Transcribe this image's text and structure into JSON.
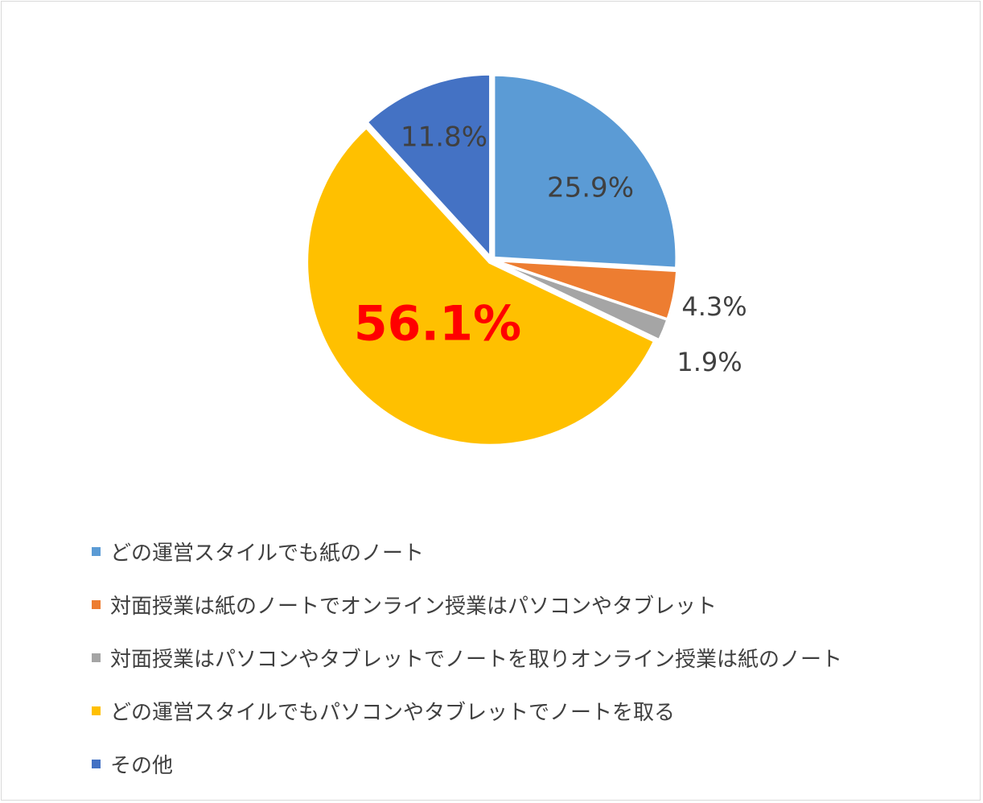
{
  "chart_data": {
    "type": "pie",
    "slices": [
      {
        "name": "どの運営スタイルでも紙のノート",
        "value": 25.9,
        "label": "25.9%",
        "color": "#5B9BD5"
      },
      {
        "name": "対面授業は紙のノートでオンライン授業はパソコンやタブレット",
        "value": 4.3,
        "label": "4.3%",
        "color": "#ED7D31"
      },
      {
        "name": "対面授業はパソコンやタブレットでノートを取りオンライン授業は紙のノート",
        "value": 1.9,
        "label": "1.9%",
        "color": "#A5A5A5"
      },
      {
        "name": "どの運営スタイルでもパソコンやタブレットでノートを取る",
        "value": 56.1,
        "label": "56.1%",
        "color": "#FFC000",
        "label_color": "#FF0000",
        "label_emphasis": "bold"
      },
      {
        "name": "その他",
        "value": 11.8,
        "label": "11.8%",
        "color": "#4472C4"
      }
    ],
    "legend_position": "bottom-left",
    "start_angle": "12 o'clock, clockwise"
  }
}
